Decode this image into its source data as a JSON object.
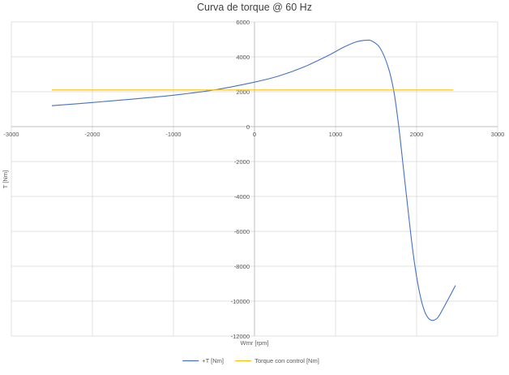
{
  "chart_data": {
    "type": "line",
    "title": "Curva de torque @ 60 Hz",
    "xlabel": "Wmr [rpm]",
    "ylabel": "T [Nm]",
    "xlim": [
      -3000,
      3000
    ],
    "ylim": [
      -12000,
      6000
    ],
    "x_ticks": [
      -3000,
      -2000,
      -1000,
      0,
      1000,
      2000,
      3000
    ],
    "y_ticks": [
      6000,
      4000,
      2000,
      0,
      -2000,
      -4000,
      -6000,
      -8000,
      -10000,
      -12000
    ],
    "grid": true,
    "legend_position": "bottom",
    "series": [
      {
        "name": "+T [Nm]",
        "color": "#4472C4",
        "points": [
          [
            -2500,
            1200
          ],
          [
            -2000,
            1380
          ],
          [
            -1500,
            1580
          ],
          [
            -1000,
            1800
          ],
          [
            -500,
            2100
          ],
          [
            0,
            2550
          ],
          [
            300,
            2900
          ],
          [
            600,
            3400
          ],
          [
            900,
            4050
          ],
          [
            1100,
            4550
          ],
          [
            1250,
            4850
          ],
          [
            1380,
            4950
          ],
          [
            1450,
            4900
          ],
          [
            1550,
            4500
          ],
          [
            1650,
            3400
          ],
          [
            1720,
            2000
          ],
          [
            1780,
            0
          ],
          [
            1840,
            -2500
          ],
          [
            1900,
            -5000
          ],
          [
            1950,
            -7000
          ],
          [
            2000,
            -8600
          ],
          [
            2050,
            -9800
          ],
          [
            2100,
            -10600
          ],
          [
            2150,
            -11000
          ],
          [
            2200,
            -11100
          ],
          [
            2260,
            -10950
          ],
          [
            2330,
            -10400
          ],
          [
            2400,
            -9800
          ],
          [
            2480,
            -9100
          ]
        ]
      },
      {
        "name": "Torque con control [Nm]",
        "color": "#FFC000",
        "points": [
          [
            -2500,
            2100
          ],
          [
            2450,
            2100
          ]
        ]
      }
    ]
  }
}
